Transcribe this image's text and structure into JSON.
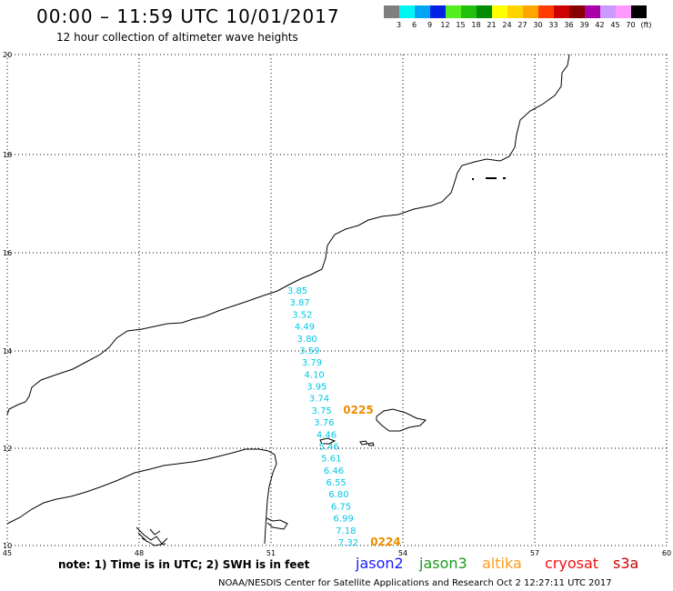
{
  "header": {
    "title": "00:00 – 11:59 UTC 10/01/2017",
    "subtitle": "12 hour collection of altimeter wave heights"
  },
  "legend": {
    "colors": [
      "#7f7f7f",
      "#00f5f5",
      "#00a6f5",
      "#0022e6",
      "#55ee22",
      "#22c00a",
      "#008c00",
      "#ffff00",
      "#ffd300",
      "#ffa500",
      "#ff3b00",
      "#cc0000",
      "#880000",
      "#aa00aa",
      "#cc99ff",
      "#ff99ff",
      "#000000"
    ],
    "labels": [
      "3",
      "6",
      "9",
      "12",
      "15",
      "18",
      "21",
      "24",
      "27",
      "30",
      "33",
      "36",
      "39",
      "42",
      "45",
      "70",
      "(ft)"
    ]
  },
  "map": {
    "lat_labels": [
      "20",
      "18",
      "16",
      "14",
      "12",
      "10"
    ],
    "lon_labels": [
      "45",
      "48",
      "51",
      "54",
      "57",
      "60"
    ],
    "swh_color": "#00c8e6",
    "swh_values": [
      "3.85",
      "3.87",
      "3.52",
      "4.49",
      "3.80",
      "3.59",
      "3.79",
      "4.10",
      "3.95",
      "3.74",
      "3.75",
      "3.76",
      "4.46",
      "5.46",
      "5.61",
      "6.46",
      "6.55",
      "6.80",
      "6.75",
      "6.99",
      "7.18",
      "7.32"
    ],
    "time_labels": [
      "0225",
      "0224"
    ],
    "time_color": "#ee8c00"
  },
  "footer": {
    "note": "note: 1) Time is in UTC; 2) SWH is in feet",
    "satellites": [
      {
        "name": "jason2",
        "color": "#1a1aff"
      },
      {
        "name": "jason3",
        "color": "#1a9a1a"
      },
      {
        "name": "altika",
        "color": "#ff9a1a"
      },
      {
        "name": "cryosat",
        "color": "#ee1111"
      },
      {
        "name": "s3a",
        "color": "#cc0000"
      }
    ],
    "credit": "NOAA/NESDIS Center for Satellite Applications and Research    Oct  2 12:27:11 UTC 2017"
  }
}
